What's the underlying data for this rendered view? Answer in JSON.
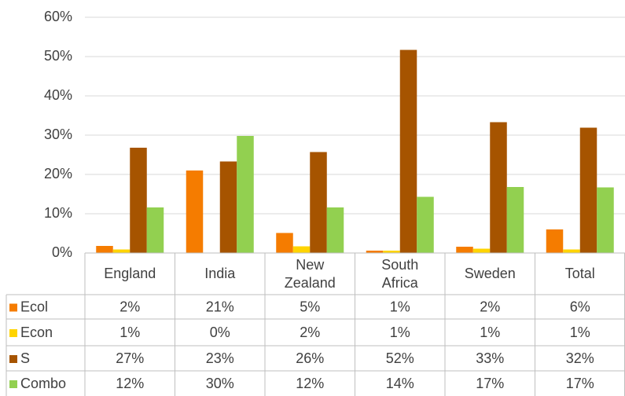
{
  "chart_data": {
    "type": "bar",
    "categories": [
      "England",
      "India",
      "New Zealand",
      "South Africa",
      "Sweden",
      "Total"
    ],
    "series": [
      {
        "name": "Ecol",
        "color": "#f57c00",
        "values": [
          1.8,
          21,
          5.1,
          0.6,
          1.6,
          6
        ],
        "value_labels": [
          "2%",
          "21%",
          "5%",
          "1%",
          "2%",
          "6%"
        ]
      },
      {
        "name": "Econ",
        "color": "#ffd400",
        "values": [
          0.9,
          0,
          1.7,
          0.6,
          1.1,
          0.9
        ],
        "value_labels": [
          "1%",
          "0%",
          "2%",
          "1%",
          "1%",
          "1%"
        ]
      },
      {
        "name": "S",
        "color": "#a65400",
        "values": [
          26.8,
          23.3,
          25.7,
          51.7,
          33.3,
          31.9
        ],
        "value_labels": [
          "27%",
          "23%",
          "26%",
          "52%",
          "33%",
          "32%"
        ]
      },
      {
        "name": "Combo",
        "color": "#92d050",
        "values": [
          11.6,
          29.8,
          11.6,
          14.3,
          16.8,
          16.7
        ],
        "value_labels": [
          "12%",
          "30%",
          "12%",
          "14%",
          "17%",
          "17%"
        ]
      }
    ],
    "ylim": [
      0,
      60
    ],
    "yticks": [
      {
        "value": 0,
        "label": "0%"
      },
      {
        "value": 10,
        "label": "10%"
      },
      {
        "value": 20,
        "label": "20%"
      },
      {
        "value": 30,
        "label": "30%"
      },
      {
        "value": 40,
        "label": "40%"
      },
      {
        "value": 50,
        "label": "50%"
      },
      {
        "value": 60,
        "label": "60%"
      }
    ],
    "grid": true
  }
}
